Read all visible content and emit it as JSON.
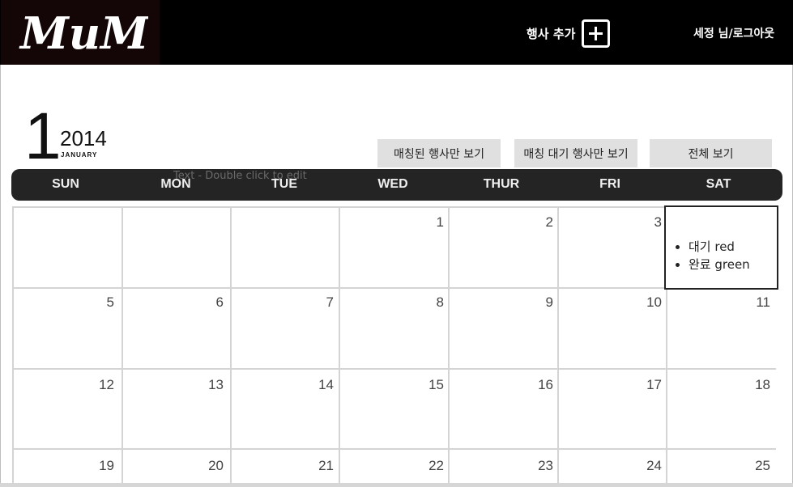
{
  "header": {
    "logo_text": "MuMa",
    "add_event_label": "행사 추가",
    "user_logout": "세정 님/로그아웃"
  },
  "calendar": {
    "month_number": "1",
    "year": "2014",
    "month_name": "JANUARY",
    "ghost_text": "Text - Double click to edit",
    "filters": {
      "matched": "매칭된 행사만 보기",
      "pending": "매칭 대기 행사만 보기",
      "all": "전체 보기"
    },
    "weekdays": [
      "SUN",
      "MON",
      "TUE",
      "WED",
      "THUR",
      "FRI",
      "SAT"
    ],
    "weeks": [
      [
        "",
        "",
        "",
        "1",
        "2",
        "3",
        ""
      ],
      [
        "5",
        "6",
        "7",
        "8",
        "9",
        "10",
        "11"
      ],
      [
        "12",
        "13",
        "14",
        "15",
        "16",
        "17",
        "18"
      ],
      [
        "19",
        "20",
        "21",
        "22",
        "23",
        "24",
        "25"
      ]
    ],
    "legend": {
      "pending": "대기 red",
      "done": "완료 green"
    }
  },
  "colors": {
    "header_bg": "#000000",
    "weekday_bar": "#242424",
    "button_bg": "#e0e0e0",
    "grid_line": "#d4d4d4"
  }
}
